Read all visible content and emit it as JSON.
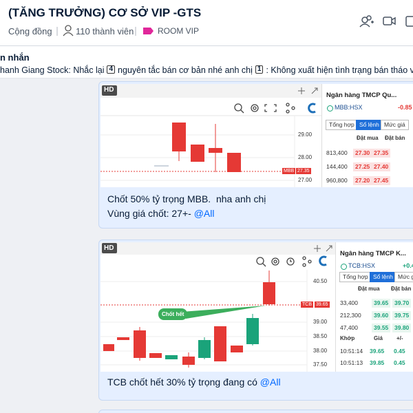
{
  "header": {
    "title": "(TĂNG TRƯỞNG) CƠ SỞ VIP -GTS",
    "type": "Cộng đồng",
    "members": "110 thành viên",
    "tag": "ROOM VIP"
  },
  "pinned": {
    "label": "n nhắn",
    "parts": [
      "hanh Giang Stock: Nhắc lại",
      "4",
      "nguyên tắc bán cơ bản nhé anh chị",
      "1",
      ": Không xuất hiện tình trạng bán tháo với tha"
    ]
  },
  "messages": [
    {
      "image": {
        "badge": "HD",
        "axis": [
          "29.00",
          "28.00",
          "27.00"
        ],
        "price_tag": [
          "MBB",
          "27.35"
        ],
        "panel": {
          "name": "Ngân hàng TMCP Qu...",
          "symbol": "MBB:HSX",
          "change": "-0.85",
          "tabs": [
            "Tổng hợp",
            "Sổ lệnh",
            "Mức giá"
          ],
          "columns": [
            "Đặt mua",
            "Đặt bán"
          ],
          "rows": [
            [
              "813,400",
              "27.30",
              "27.35"
            ],
            [
              "144,400",
              "27.25",
              "27.40"
            ],
            [
              "960,800",
              "27.20",
              "27.45"
            ]
          ]
        }
      },
      "text": [
        "Chốt 50% tỷ trọng MBB.  nha anh chị",
        "Vùng giá chốt: 27+- "
      ],
      "mention": "@All"
    },
    {
      "image": {
        "badge": "HD",
        "axis": [
          "40.50",
          "39.00",
          "38.50",
          "38.00",
          "37.50"
        ],
        "price_tag": [
          "TCB",
          "39.65"
        ],
        "annotation": "Chốt hết",
        "panel": {
          "name": "Ngân hàng TMCP K...",
          "symbol": "TCB:HSX",
          "change": "+0.4",
          "tabs": [
            "Tổng hợp",
            "Sổ lệnh",
            "Mức giá"
          ],
          "columns": [
            "Đặt mua",
            "Đặt bán"
          ],
          "rows": [
            [
              "33,400",
              "39.65",
              "39.70"
            ],
            [
              "212,300",
              "39.60",
              "39.75"
            ],
            [
              "47,400",
              "39.55",
              "39.80"
            ]
          ],
          "trade_columns": [
            "Khớp",
            "Giá",
            "+/-"
          ],
          "trades": [
            [
              "10:51:14",
              "39.65",
              "0.45"
            ],
            [
              "10:51:13",
              "39.85",
              "0.45"
            ]
          ]
        }
      },
      "text": [
        "TCB chốt hết 30% tỷ trọng đang có "
      ],
      "mention": "@All"
    }
  ]
}
